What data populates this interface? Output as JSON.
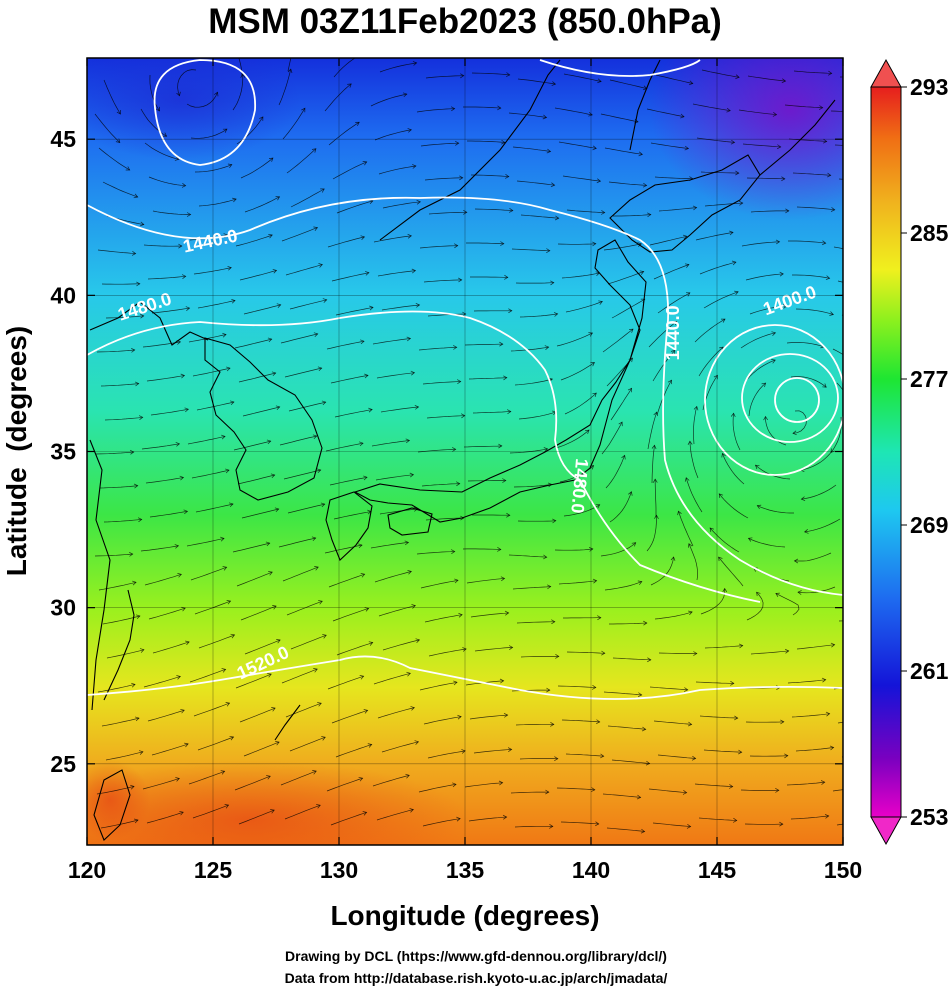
{
  "chart_data": {
    "type": "heatmap",
    "title": "MSM 03Z11Feb2023 (850.0hPa)",
    "xlabel": "Longitude (degrees)",
    "ylabel": "Latitude  (degrees)",
    "xlim": [
      120,
      150
    ],
    "ylim": [
      22.4,
      47.6
    ],
    "x_ticks": [
      "120",
      "125",
      "130",
      "135",
      "140",
      "145",
      "150"
    ],
    "y_ticks": [
      "25",
      "30",
      "35",
      "40",
      "45"
    ],
    "grid": true,
    "colorbar": {
      "range": [
        253,
        293
      ],
      "ticks": [
        "253",
        "261",
        "269",
        "277",
        "285",
        "293"
      ],
      "colors": [
        "#e800c8",
        "#7a00c0",
        "#1414d8",
        "#1e6cf0",
        "#1ec8f0",
        "#1ee6b4",
        "#1ee632",
        "#8cf01e",
        "#f0f01e",
        "#f0b41e",
        "#f06e14",
        "#e61e1e"
      ]
    },
    "contour_labels": [
      {
        "text": "1440.0",
        "lon": 124.9,
        "lat": 41.7,
        "angle": -12
      },
      {
        "text": "1480.0",
        "lon": 122.3,
        "lat": 39.6,
        "angle": -18
      },
      {
        "text": "1440.0",
        "lon": 143.3,
        "lat": 38.8,
        "angle": -90
      },
      {
        "text": "1400.0",
        "lon": 147.9,
        "lat": 39.8,
        "angle": -20
      },
      {
        "text": "1480.0",
        "lon": 139.5,
        "lat": 33.9,
        "angle": 95
      },
      {
        "text": "1520.0",
        "lon": 127.0,
        "lat": 28.2,
        "angle": -25
      }
    ]
  },
  "credits": {
    "line1": "Drawing by DCL (https://www.gfd-dennou.org/library/dcl/)",
    "line2": "Data from http://database.rish.kyoto-u.ac.jp/arch/jmadata/"
  }
}
